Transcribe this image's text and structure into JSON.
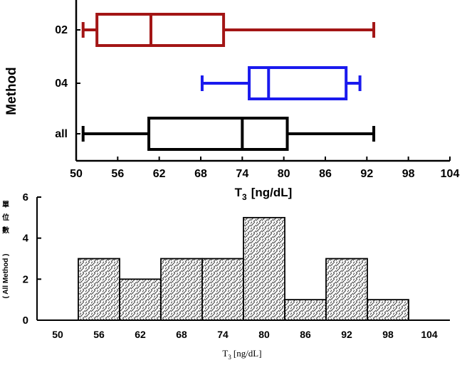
{
  "chart_data": [
    {
      "type": "boxplot",
      "ylabel": "Method",
      "xlabel_main": "T",
      "xlabel_sub": "3",
      "xlabel_unit": "[ng/dL]",
      "xlim": [
        50,
        104
      ],
      "xticks": [
        "50",
        "56",
        "62",
        "68",
        "74",
        "80",
        "86",
        "92",
        "98",
        "104"
      ],
      "series": [
        {
          "name": "02",
          "color": "#a31515",
          "min": 51,
          "q1": 53,
          "median": 60.8,
          "q3": 71.3,
          "max": 93
        },
        {
          "name": "04",
          "color": "#1a1aee",
          "min": 68.2,
          "q1": 75,
          "median": 77.8,
          "q3": 89,
          "max": 91
        },
        {
          "name": "all",
          "color": "#000000",
          "min": 51,
          "q1": 60.5,
          "median": 74,
          "q3": 80.5,
          "max": 93
        }
      ]
    },
    {
      "type": "bar",
      "ylabel_cjk": [
        "單",
        "位",
        "數"
      ],
      "ylabel_latin": "( All Method )",
      "xlabel_main": "T",
      "xlabel_sub": "3",
      "xlabel_unit": "[ng/dL]",
      "ylim": [
        0,
        6
      ],
      "yticks": [
        "0",
        "2",
        "4",
        "6"
      ],
      "xlim": [
        47,
        107
      ],
      "xticks": [
        "50",
        "56",
        "62",
        "68",
        "74",
        "80",
        "86",
        "92",
        "98",
        "104"
      ],
      "bins": [
        {
          "from": 53,
          "to": 59,
          "value": 3
        },
        {
          "from": 59,
          "to": 65,
          "value": 2
        },
        {
          "from": 65,
          "to": 71,
          "value": 3
        },
        {
          "from": 71,
          "to": 77,
          "value": 3
        },
        {
          "from": 77,
          "to": 83,
          "value": 5
        },
        {
          "from": 83,
          "to": 89,
          "value": 1
        },
        {
          "from": 89,
          "to": 95,
          "value": 3
        },
        {
          "from": 95,
          "to": 101,
          "value": 1
        }
      ]
    }
  ]
}
